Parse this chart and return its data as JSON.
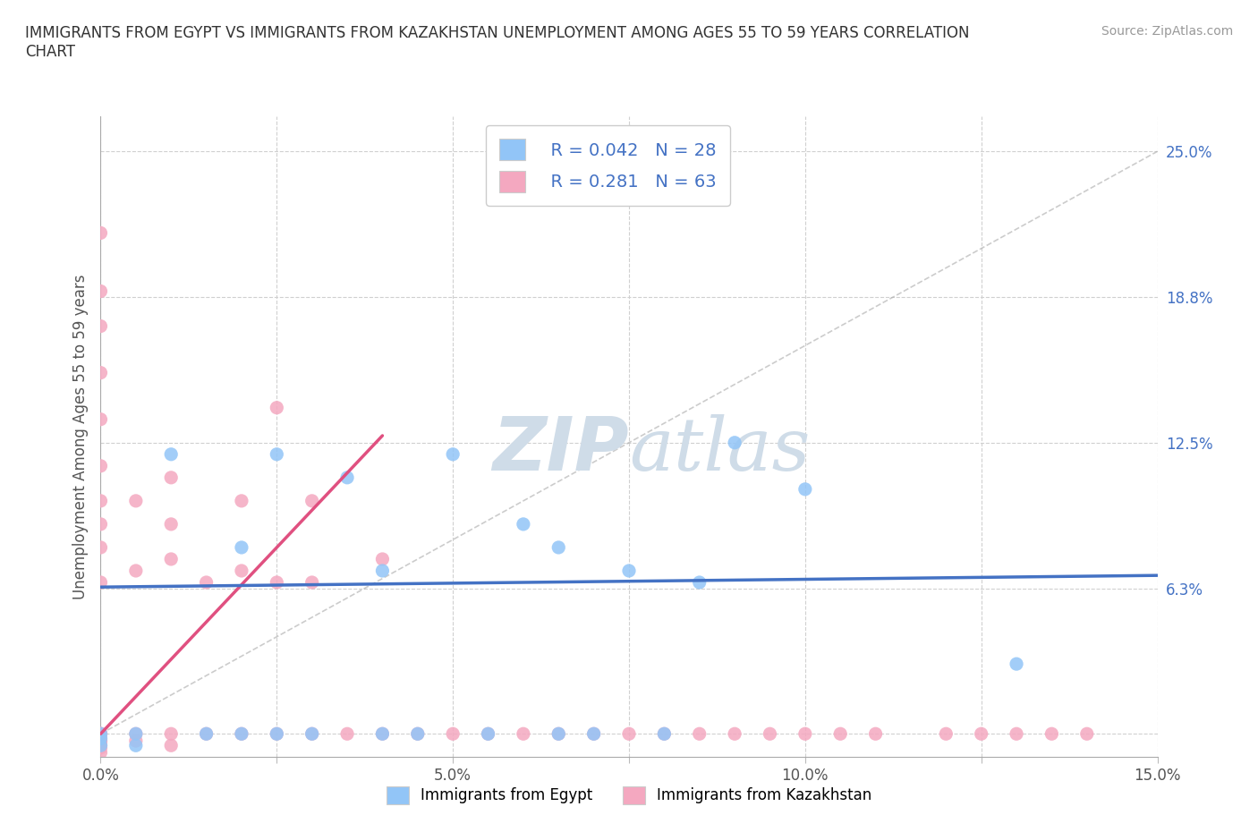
{
  "title": "IMMIGRANTS FROM EGYPT VS IMMIGRANTS FROM KAZAKHSTAN UNEMPLOYMENT AMONG AGES 55 TO 59 YEARS CORRELATION\nCHART",
  "source": "Source: ZipAtlas.com",
  "ylabel": "Unemployment Among Ages 55 to 59 years",
  "xlim": [
    0.0,
    0.15
  ],
  "ylim": [
    -0.01,
    0.265
  ],
  "xticks": [
    0.0,
    0.025,
    0.05,
    0.075,
    0.1,
    0.125,
    0.15
  ],
  "xticklabels": [
    "0.0%",
    "",
    "5.0%",
    "",
    "10.0%",
    "",
    "15.0%"
  ],
  "yticks_right": [
    0.0,
    0.0625,
    0.125,
    0.1875,
    0.25
  ],
  "yticklabels_right": [
    "",
    "6.3%",
    "12.5%",
    "18.8%",
    "25.0%"
  ],
  "egypt_color": "#92c5f7",
  "kazakhstan_color": "#f4a8c0",
  "egypt_R": 0.042,
  "egypt_N": 28,
  "kazakhstan_R": 0.281,
  "kazakhstan_N": 63,
  "watermark_color": "#cfdce8",
  "grid_color": "#d0d0d0",
  "background_color": "#ffffff",
  "trend_blue_color": "#4472c4",
  "trend_pink_color": "#e05080",
  "egypt_scatter_x": [
    0.0,
    0.0,
    0.0,
    0.005,
    0.005,
    0.01,
    0.015,
    0.02,
    0.02,
    0.025,
    0.025,
    0.03,
    0.035,
    0.04,
    0.04,
    0.045,
    0.05,
    0.055,
    0.06,
    0.065,
    0.065,
    0.07,
    0.075,
    0.08,
    0.085,
    0.09,
    0.1,
    0.13
  ],
  "egypt_scatter_y": [
    -0.005,
    0.0,
    -0.002,
    0.0,
    -0.005,
    0.12,
    0.0,
    0.0,
    0.08,
    0.12,
    0.0,
    0.0,
    0.11,
    0.0,
    0.07,
    0.0,
    0.12,
    0.0,
    0.09,
    0.0,
    0.08,
    0.0,
    0.07,
    0.0,
    0.065,
    0.125,
    0.105,
    0.03
  ],
  "kazakhstan_scatter_x": [
    0.0,
    0.0,
    0.0,
    0.0,
    0.0,
    0.0,
    0.0,
    0.0,
    0.0,
    0.0,
    0.0,
    0.0,
    0.0,
    0.0,
    0.0,
    0.0,
    0.0,
    0.0,
    0.0,
    0.0,
    0.0,
    0.005,
    0.005,
    0.005,
    0.005,
    0.01,
    0.01,
    0.01,
    0.01,
    0.01,
    0.015,
    0.015,
    0.02,
    0.02,
    0.02,
    0.025,
    0.025,
    0.025,
    0.03,
    0.03,
    0.03,
    0.035,
    0.04,
    0.04,
    0.045,
    0.05,
    0.055,
    0.06,
    0.065,
    0.07,
    0.075,
    0.08,
    0.085,
    0.09,
    0.095,
    0.1,
    0.105,
    0.11,
    0.12,
    0.125,
    0.13,
    0.135,
    0.14
  ],
  "kazakhstan_scatter_y": [
    -0.005,
    -0.003,
    0.0,
    0.0,
    0.0,
    0.0,
    -0.005,
    -0.008,
    -0.003,
    -0.006,
    -0.002,
    0.065,
    0.08,
    0.09,
    0.1,
    0.115,
    0.135,
    0.155,
    0.175,
    0.19,
    0.215,
    -0.003,
    0.0,
    0.07,
    0.1,
    -0.005,
    0.0,
    0.075,
    0.09,
    0.11,
    0.0,
    0.065,
    0.0,
    0.07,
    0.1,
    0.0,
    0.065,
    0.14,
    0.0,
    0.065,
    0.1,
    0.0,
    0.0,
    0.075,
    0.0,
    0.0,
    0.0,
    0.0,
    0.0,
    0.0,
    0.0,
    0.0,
    0.0,
    0.0,
    0.0,
    0.0,
    0.0,
    0.0,
    0.0,
    0.0,
    0.0,
    0.0,
    0.0
  ],
  "kaz_trend_x0": 0.0,
  "kaz_trend_y0": 0.0,
  "kaz_trend_x1": 0.04,
  "kaz_trend_y1": 0.128,
  "egypt_trend_x0": 0.0,
  "egypt_trend_y0": 0.063,
  "egypt_trend_x1": 0.15,
  "egypt_trend_y1": 0.068
}
